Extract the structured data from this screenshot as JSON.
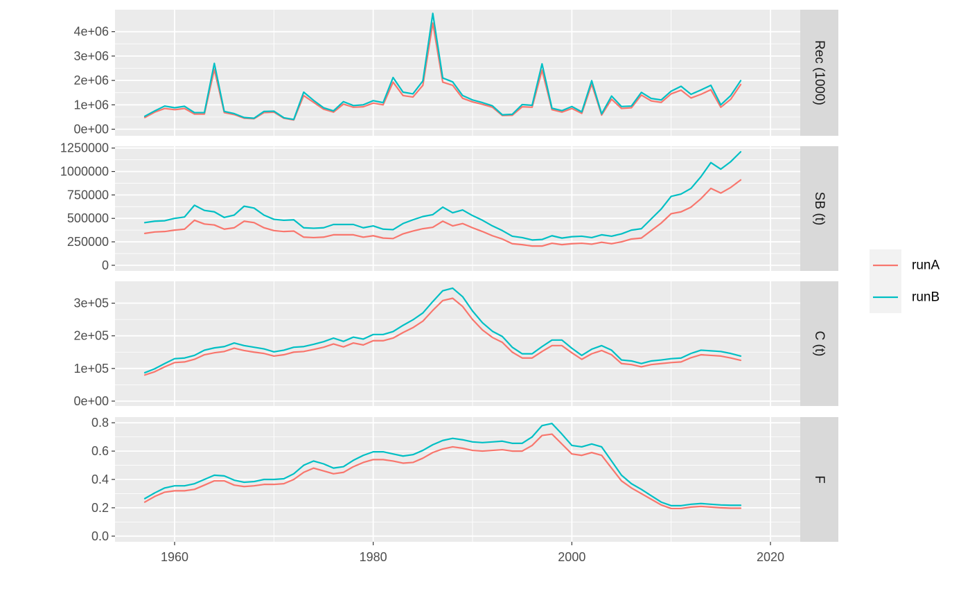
{
  "chart_data": {
    "type": "line",
    "facet_layout": "vertical, shared x axis, strip labels on right",
    "grid": true,
    "legend_placement": "right",
    "colors": {
      "runA": "#F8766D",
      "runB": "#00BFC4"
    },
    "xlim": [
      1954,
      2023
    ],
    "x_ticks": [
      {
        "value": 1960,
        "label": "1960"
      },
      {
        "value": 1980,
        "label": "1980"
      },
      {
        "value": 2000,
        "label": "2000"
      },
      {
        "value": 2020,
        "label": "2020"
      }
    ],
    "years": [
      1957,
      1958,
      1959,
      1960,
      1961,
      1962,
      1963,
      1964,
      1965,
      1966,
      1967,
      1968,
      1969,
      1970,
      1971,
      1972,
      1973,
      1974,
      1975,
      1976,
      1977,
      1978,
      1979,
      1980,
      1981,
      1982,
      1983,
      1984,
      1985,
      1986,
      1987,
      1988,
      1989,
      1990,
      1991,
      1992,
      1993,
      1994,
      1995,
      1996,
      1997,
      1998,
      1999,
      2000,
      2001,
      2002,
      2003,
      2004,
      2005,
      2006,
      2007,
      2008,
      2009,
      2010,
      2011,
      2012,
      2013,
      2014,
      2015,
      2016,
      2017
    ],
    "legend": [
      {
        "name": "runA",
        "color": "#F8766D"
      },
      {
        "name": "runB",
        "color": "#00BFC4"
      }
    ],
    "panels": [
      {
        "strip": "Rec (1000)",
        "ylim": [
          -270000,
          4900000
        ],
        "y_ticks": [
          {
            "value": 0,
            "label": "0e+00"
          },
          {
            "value": 1000000,
            "label": "1e+06"
          },
          {
            "value": 2000000,
            "label": "2e+06"
          },
          {
            "value": 3000000,
            "label": "3e+06"
          },
          {
            "value": 4000000,
            "label": "4e+06"
          }
        ],
        "series": [
          {
            "name": "runA",
            "values": [
              480000,
              700000,
              850000,
              800000,
              850000,
              620000,
              620000,
              2450000,
              680000,
              600000,
              450000,
              430000,
              680000,
              700000,
              450000,
              380000,
              1380000,
              1100000,
              820000,
              700000,
              1030000,
              900000,
              920000,
              1070000,
              1000000,
              1930000,
              1380000,
              1320000,
              1800000,
              4350000,
              1930000,
              1800000,
              1270000,
              1120000,
              1020000,
              900000,
              560000,
              570000,
              920000,
              900000,
              2420000,
              800000,
              700000,
              850000,
              650000,
              1850000,
              580000,
              1230000,
              850000,
              880000,
              1400000,
              1160000,
              1100000,
              1450000,
              1600000,
              1280000,
              1430000,
              1620000,
              900000,
              1230000,
              1830000
            ]
          },
          {
            "name": "runB",
            "values": [
              530000,
              750000,
              950000,
              880000,
              940000,
              680000,
              680000,
              2700000,
              730000,
              640000,
              480000,
              450000,
              730000,
              740000,
              470000,
              400000,
              1520000,
              1180000,
              880000,
              750000,
              1130000,
              970000,
              1000000,
              1170000,
              1090000,
              2120000,
              1520000,
              1450000,
              1980000,
              4750000,
              2100000,
              1940000,
              1380000,
              1200000,
              1090000,
              960000,
              590000,
              610000,
              1010000,
              980000,
              2680000,
              860000,
              760000,
              930000,
              710000,
              1990000,
              630000,
              1360000,
              930000,
              950000,
              1510000,
              1260000,
              1200000,
              1560000,
              1760000,
              1430000,
              1610000,
              1800000,
              1000000,
              1380000,
              1990000
            ]
          }
        ]
      },
      {
        "strip": "SB (t)",
        "ylim": [
          -60000,
          1270000
        ],
        "y_ticks": [
          {
            "value": 0,
            "label": "0"
          },
          {
            "value": 250000,
            "label": "250000"
          },
          {
            "value": 500000,
            "label": "500000"
          },
          {
            "value": 750000,
            "label": "750000"
          },
          {
            "value": 1000000,
            "label": "1000000"
          },
          {
            "value": 1250000,
            "label": "1250000"
          }
        ],
        "series": [
          {
            "name": "runA",
            "values": [
              340000,
              355000,
              360000,
              375000,
              385000,
              480000,
              440000,
              430000,
              385000,
              400000,
              470000,
              455000,
              400000,
              370000,
              360000,
              365000,
              300000,
              295000,
              300000,
              325000,
              325000,
              325000,
              300000,
              315000,
              290000,
              285000,
              335000,
              365000,
              390000,
              405000,
              470000,
              420000,
              445000,
              400000,
              360000,
              315000,
              280000,
              230000,
              220000,
              205000,
              205000,
              235000,
              220000,
              230000,
              235000,
              225000,
              245000,
              230000,
              250000,
              280000,
              290000,
              370000,
              450000,
              550000,
              570000,
              620000,
              710000,
              820000,
              770000,
              830000,
              910000
            ]
          },
          {
            "name": "runB",
            "values": [
              455000,
              470000,
              475000,
              500000,
              515000,
              640000,
              585000,
              570000,
              510000,
              535000,
              630000,
              610000,
              535000,
              490000,
              480000,
              485000,
              400000,
              395000,
              400000,
              435000,
              435000,
              435000,
              400000,
              420000,
              385000,
              380000,
              445000,
              485000,
              520000,
              540000,
              620000,
              560000,
              590000,
              530000,
              480000,
              420000,
              370000,
              310000,
              295000,
              270000,
              275000,
              315000,
              290000,
              305000,
              310000,
              295000,
              325000,
              310000,
              335000,
              375000,
              390000,
              495000,
              600000,
              735000,
              760000,
              820000,
              945000,
              1095000,
              1025000,
              1105000,
              1210000
            ]
          }
        ]
      },
      {
        "strip": "C (t)",
        "ylim": [
          -15000,
          367000
        ],
        "y_ticks": [
          {
            "value": 0,
            "label": "0e+00"
          },
          {
            "value": 100000,
            "label": "1e+05"
          },
          {
            "value": 200000,
            "label": "2e+05"
          },
          {
            "value": 300000,
            "label": "3e+05"
          }
        ],
        "series": [
          {
            "name": "runA",
            "values": [
              80000,
              90000,
              105000,
              118000,
              120000,
              128000,
              142000,
              148000,
              152000,
              162000,
              155000,
              150000,
              146000,
              138000,
              142000,
              150000,
              152000,
              158000,
              165000,
              175000,
              166000,
              178000,
              172000,
              185000,
              185000,
              193000,
              210000,
              225000,
              245000,
              278000,
              308000,
              315000,
              290000,
              250000,
              218000,
              195000,
              180000,
              150000,
              132000,
              132000,
              152000,
              170000,
              170000,
              148000,
              128000,
              145000,
              155000,
              142000,
              115000,
              112000,
              105000,
              112000,
              115000,
              118000,
              120000,
              133000,
              142000,
              140000,
              138000,
              132000,
              125000
            ]
          },
          {
            "name": "runB",
            "values": [
              87000,
              99000,
              115000,
              130000,
              132000,
              140000,
              156000,
              163000,
              167000,
              178000,
              170000,
              165000,
              160000,
              151000,
              156000,
              165000,
              167000,
              174000,
              182000,
              193000,
              183000,
              196000,
              190000,
              204000,
              204000,
              213000,
              232000,
              249000,
              270000,
              305000,
              338000,
              346000,
              320000,
              276000,
              240000,
              214000,
              198000,
              165000,
              145000,
              145000,
              167000,
              187000,
              187000,
              162000,
              140000,
              159000,
              170000,
              156000,
              126000,
              123000,
              115000,
              123000,
              126000,
              130000,
              132000,
              146000,
              156000,
              154000,
              152000,
              146000,
              138000
            ]
          }
        ]
      },
      {
        "strip": "F",
        "ylim": [
          -0.04,
          0.84
        ],
        "y_ticks": [
          {
            "value": 0,
            "label": "0.0"
          },
          {
            "value": 0.2,
            "label": "0.2"
          },
          {
            "value": 0.4,
            "label": "0.4"
          },
          {
            "value": 0.6,
            "label": "0.6"
          },
          {
            "value": 0.8,
            "label": "0.8"
          }
        ],
        "series": [
          {
            "name": "runA",
            "values": [
              0.24,
              0.28,
              0.31,
              0.32,
              0.32,
              0.33,
              0.36,
              0.39,
              0.39,
              0.36,
              0.35,
              0.355,
              0.365,
              0.365,
              0.37,
              0.4,
              0.45,
              0.48,
              0.46,
              0.44,
              0.45,
              0.49,
              0.52,
              0.54,
              0.54,
              0.53,
              0.515,
              0.52,
              0.55,
              0.59,
              0.615,
              0.63,
              0.62,
              0.605,
              0.6,
              0.605,
              0.61,
              0.6,
              0.6,
              0.64,
              0.71,
              0.72,
              0.65,
              0.58,
              0.57,
              0.59,
              0.57,
              0.48,
              0.39,
              0.34,
              0.3,
              0.26,
              0.22,
              0.195,
              0.195,
              0.205,
              0.21,
              0.205,
              0.2,
              0.197,
              0.197
            ]
          },
          {
            "name": "runB",
            "values": [
              0.265,
              0.305,
              0.34,
              0.355,
              0.355,
              0.37,
              0.4,
              0.43,
              0.425,
              0.395,
              0.38,
              0.385,
              0.4,
              0.4,
              0.405,
              0.44,
              0.5,
              0.53,
              0.51,
              0.48,
              0.49,
              0.535,
              0.57,
              0.595,
              0.595,
              0.58,
              0.565,
              0.575,
              0.605,
              0.645,
              0.675,
              0.69,
              0.68,
              0.665,
              0.66,
              0.665,
              0.67,
              0.655,
              0.655,
              0.7,
              0.78,
              0.795,
              0.72,
              0.64,
              0.63,
              0.65,
              0.63,
              0.53,
              0.43,
              0.37,
              0.33,
              0.285,
              0.24,
              0.215,
              0.215,
              0.225,
              0.23,
              0.225,
              0.22,
              0.218,
              0.218
            ]
          }
        ]
      }
    ]
  }
}
